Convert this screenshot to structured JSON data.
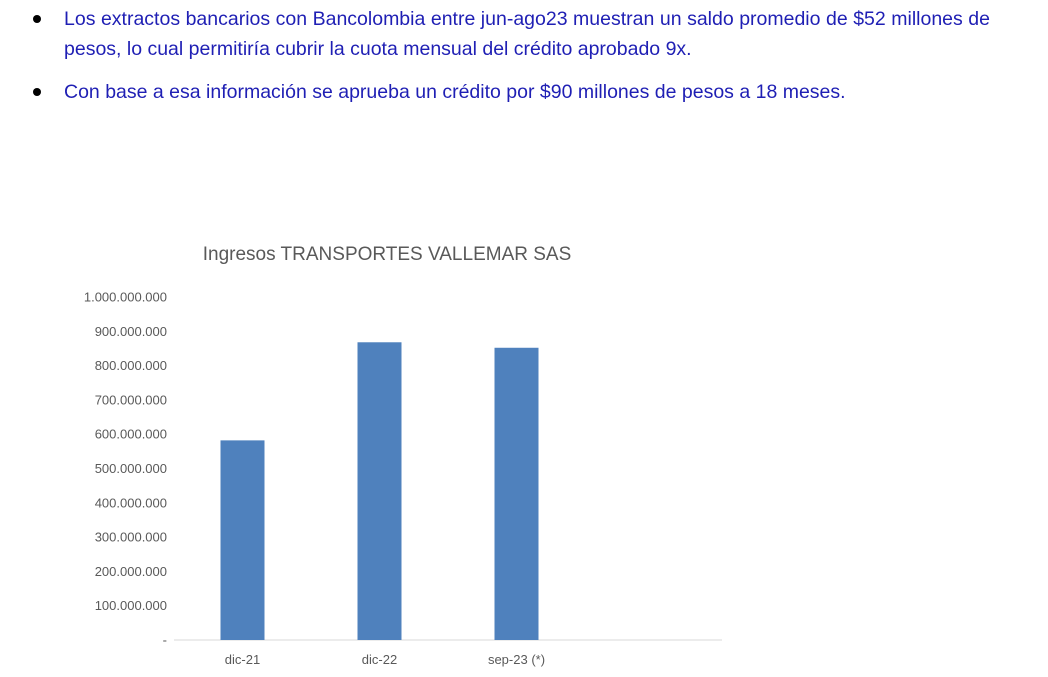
{
  "bullets": [
    "Los extractos bancarios con Bancolombia entre jun-ago23 muestran un saldo promedio de $52 millones de pesos, lo cual permitiría cubrir la cuota mensual del crédito aprobado 9x.",
    "Con base a esa información se aprueba un crédito por $90 millones de pesos a 18 meses."
  ],
  "colors": {
    "bullet_text": "#1f1fb4",
    "bar": "#4f81bd",
    "axis_text": "#595959",
    "axis_line": "#d9d9d9"
  },
  "chart_data": {
    "type": "bar",
    "title": "Ingresos TRANSPORTES VALLEMAR SAS",
    "categories": [
      "dic-21",
      "dic-22",
      "sep-23 (*)"
    ],
    "values": [
      582000000,
      868000000,
      852000000
    ],
    "ylim": [
      0,
      1000000000
    ],
    "y_ticks": [
      {
        "value": 1000000000,
        "label": "1.000.000.000"
      },
      {
        "value": 900000000,
        "label": "900.000.000"
      },
      {
        "value": 800000000,
        "label": "800.000.000"
      },
      {
        "value": 700000000,
        "label": "700.000.000"
      },
      {
        "value": 600000000,
        "label": "600.000.000"
      },
      {
        "value": 500000000,
        "label": "500.000.000"
      },
      {
        "value": 400000000,
        "label": "400.000.000"
      },
      {
        "value": 300000000,
        "label": "300.000.000"
      },
      {
        "value": 200000000,
        "label": "200.000.000"
      },
      {
        "value": 100000000,
        "label": "100.000.000"
      },
      {
        "value": 0,
        "label": "-"
      }
    ],
    "xlabel": "",
    "ylabel": "",
    "grid": false,
    "legend": "none"
  }
}
